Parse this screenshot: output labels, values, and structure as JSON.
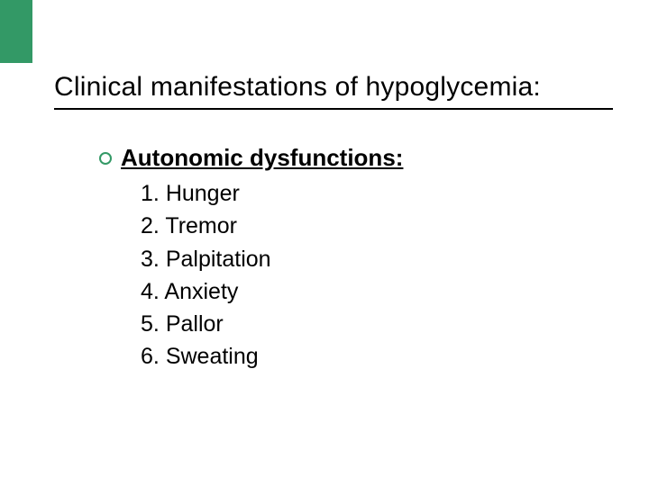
{
  "colors": {
    "accent": "#339966",
    "background": "#ffffff",
    "text": "#000000"
  },
  "slide": {
    "title": "Clinical manifestations of hypoglycemia:",
    "section_heading": "Autonomic dysfunctions:",
    "items": [
      "Hunger",
      "Tremor",
      "Palpitation",
      "Anxiety",
      "Pallor",
      "Sweating"
    ]
  }
}
